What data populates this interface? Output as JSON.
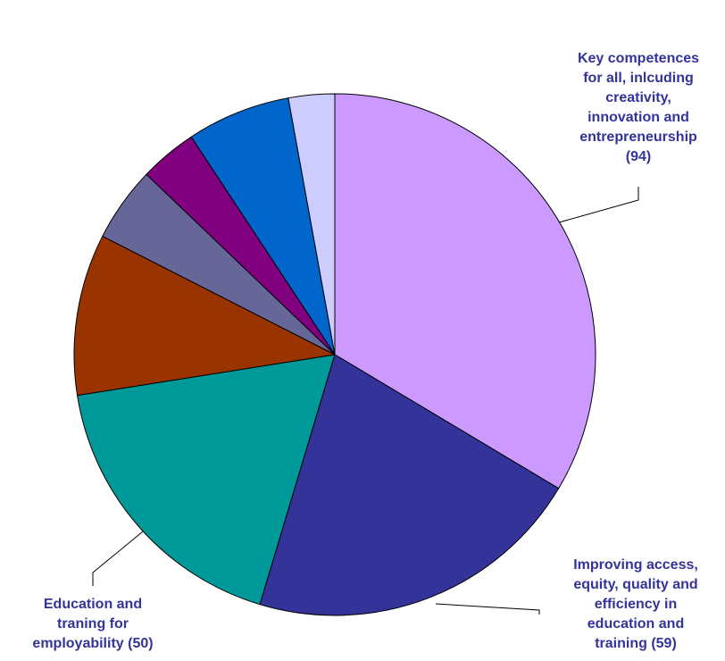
{
  "chart_data": {
    "type": "pie",
    "title": "",
    "start_angle_deg": 0,
    "direction": "clockwise",
    "slices": [
      {
        "label": "Key competences for all, inlcuding creativity, innovation and entrepreneurship (94)",
        "label_lines": [
          "Key competences",
          "for all, inlcuding",
          "creativity,",
          "innovation and",
          "entrepreneurship",
          "(94)"
        ],
        "value": 94,
        "color": "#cc99ff"
      },
      {
        "label": "Improving access, equity, quality and efficiency in education and training (59)",
        "label_lines": [
          "Improving access,",
          "equity, quality and",
          "efficiency in",
          "education and",
          "training (59)"
        ],
        "value": 59,
        "color": "#333399"
      },
      {
        "label": "Education and traning for employability (50)",
        "label_lines": [
          "Education and",
          "traning for",
          "employability (50)"
        ],
        "value": 50,
        "color": "#009999"
      },
      {
        "label": "",
        "value": 28,
        "color": "#993300"
      },
      {
        "label": "",
        "value": 13,
        "color": "#666699"
      },
      {
        "label": "",
        "value": 10,
        "color": "#800080"
      },
      {
        "label": "",
        "value": 18,
        "color": "#0066cc"
      },
      {
        "label": "",
        "value": 8,
        "color": "#ccccff"
      }
    ],
    "label_color": "#333399"
  }
}
